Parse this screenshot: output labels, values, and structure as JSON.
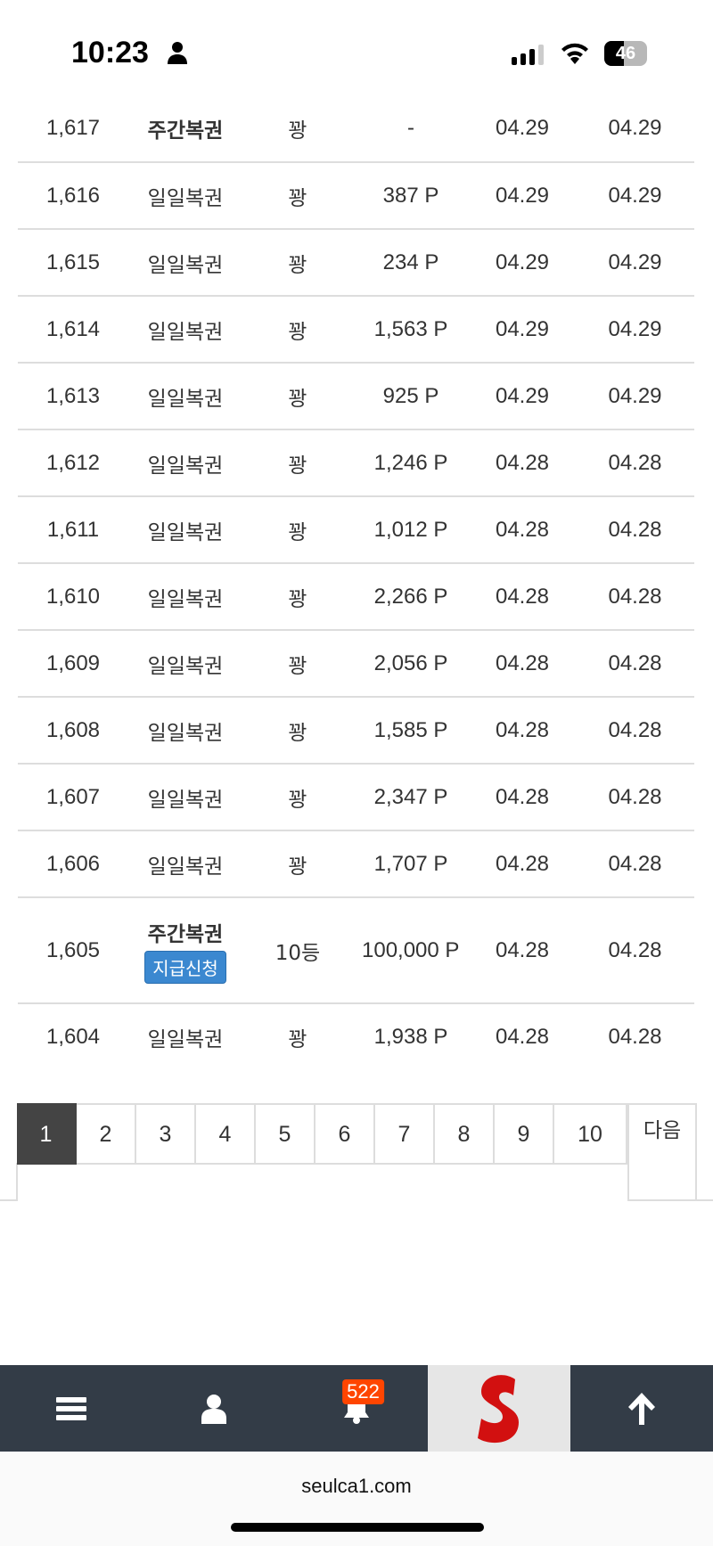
{
  "status_bar": {
    "time": "10:23",
    "battery": "46",
    "battery_level": 0.46
  },
  "rows": [
    {
      "no": "1,617",
      "type": "주간복권",
      "type_bold": true,
      "result": "꽝",
      "points": "-",
      "date1": "04.29",
      "date2": "04.29"
    },
    {
      "no": "1,616",
      "type": "일일복권",
      "result": "꽝",
      "points": "387 P",
      "date1": "04.29",
      "date2": "04.29"
    },
    {
      "no": "1,615",
      "type": "일일복권",
      "result": "꽝",
      "points": "234 P",
      "date1": "04.29",
      "date2": "04.29"
    },
    {
      "no": "1,614",
      "type": "일일복권",
      "result": "꽝",
      "points": "1,563 P",
      "date1": "04.29",
      "date2": "04.29"
    },
    {
      "no": "1,613",
      "type": "일일복권",
      "result": "꽝",
      "points": "925 P",
      "date1": "04.29",
      "date2": "04.29"
    },
    {
      "no": "1,612",
      "type": "일일복권",
      "result": "꽝",
      "points": "1,246 P",
      "date1": "04.28",
      "date2": "04.28"
    },
    {
      "no": "1,611",
      "type": "일일복권",
      "result": "꽝",
      "points": "1,012 P",
      "date1": "04.28",
      "date2": "04.28"
    },
    {
      "no": "1,610",
      "type": "일일복권",
      "result": "꽝",
      "points": "2,266 P",
      "date1": "04.28",
      "date2": "04.28"
    },
    {
      "no": "1,609",
      "type": "일일복권",
      "result": "꽝",
      "points": "2,056 P",
      "date1": "04.28",
      "date2": "04.28"
    },
    {
      "no": "1,608",
      "type": "일일복권",
      "result": "꽝",
      "points": "1,585 P",
      "date1": "04.28",
      "date2": "04.28"
    },
    {
      "no": "1,607",
      "type": "일일복권",
      "result": "꽝",
      "points": "2,347 P",
      "date1": "04.28",
      "date2": "04.28"
    },
    {
      "no": "1,606",
      "type": "일일복권",
      "result": "꽝",
      "points": "1,707 P",
      "date1": "04.28",
      "date2": "04.28"
    },
    {
      "no": "1,605",
      "type": "주간복권",
      "type_bold": true,
      "claim_button": "지급신청",
      "result": "10등",
      "points": "100,000 P",
      "date1": "04.28",
      "date2": "04.28"
    },
    {
      "no": "1,604",
      "type": "일일복권",
      "result": "꽝",
      "points": "1,938 P",
      "date1": "04.28",
      "date2": "04.28"
    }
  ],
  "pagination": {
    "pages": [
      "1",
      "2",
      "3",
      "4",
      "5",
      "6",
      "7",
      "8",
      "9",
      "10"
    ],
    "active": "1",
    "next_label": "다음"
  },
  "bottom_nav": {
    "notification_count": "522",
    "icons": [
      "menu-icon",
      "user-icon",
      "bell-icon",
      "site-logo",
      "arrow-up-icon"
    ]
  },
  "browser": {
    "url": "seulca1.com"
  },
  "colors": {
    "nav_bg": "#333c47",
    "badge": "#ff4500",
    "claim_button": "#3b88d0",
    "active_page": "#444444"
  }
}
